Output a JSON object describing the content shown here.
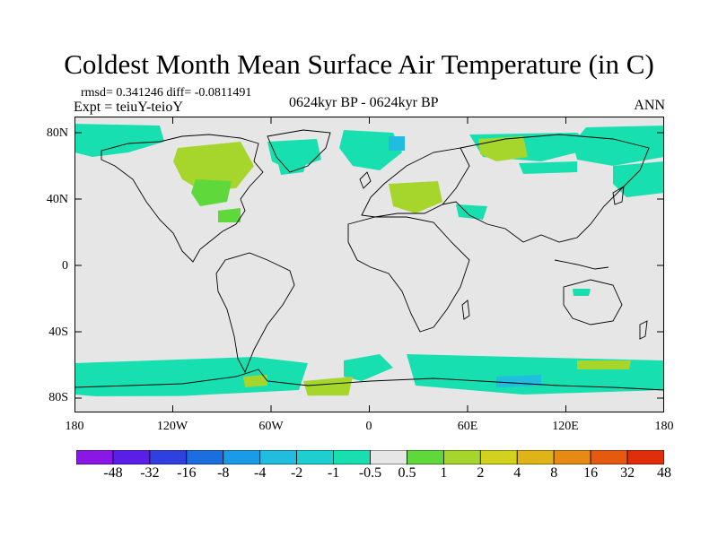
{
  "title": "Coldest Month Mean Surface Air Temperature (in C)",
  "stats": "rmsd= 0.341246 diff= -0.0811491",
  "expt": "Expt = teiuY-teioY",
  "period": "0624kyr BP - 0624kyr BP",
  "season": "ANN",
  "map": {
    "lat_labels": [
      "80N",
      "40N",
      "0",
      "40S",
      "80S"
    ],
    "lon_labels": [
      "180",
      "120W",
      "60W",
      "0",
      "60E",
      "120E",
      "180"
    ]
  },
  "colorbar": {
    "labels": [
      "-48",
      "-32",
      "-16",
      "-8",
      "-4",
      "-2",
      "-1",
      "-0.5",
      "0.5",
      "1",
      "2",
      "4",
      "8",
      "16",
      "32",
      "48"
    ],
    "colors": [
      "#8a17e6",
      "#5a1ee8",
      "#2f3fe0",
      "#1a6ee0",
      "#1a9be8",
      "#20bde0",
      "#1ecfd2",
      "#18dfb0",
      "#e6e6e6",
      "#5ed83a",
      "#a6d62c",
      "#d2d21e",
      "#e0b416",
      "#e68a14",
      "#e65a10",
      "#e02e0a"
    ]
  },
  "colors": {
    "ocean_neutral": "#e6e6e6",
    "cyan": "#18dfb0",
    "teal": "#20bde0",
    "green": "#a6d62c",
    "lime": "#5ed83a"
  }
}
